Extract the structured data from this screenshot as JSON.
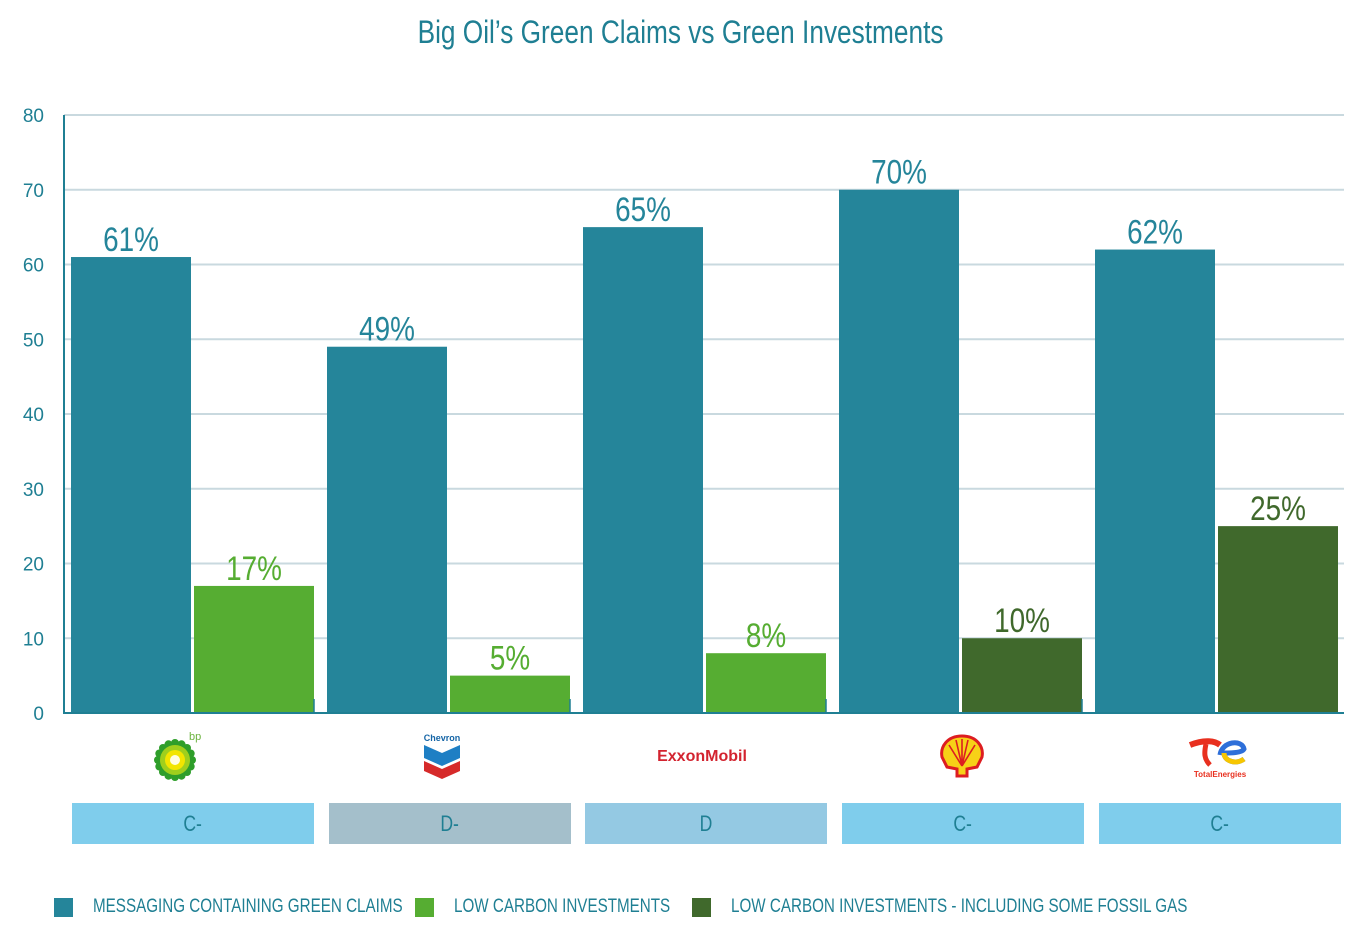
{
  "colors": {
    "claims": "#25859a",
    "low_carbon": "#56ad32",
    "low_carbon_gas": "#40692c",
    "text": "#1f7f93",
    "grid": "#c9d9df",
    "axis": "#1f7f93"
  },
  "chart_data": {
    "type": "bar",
    "title": "Big Oil’s Green Claims vs Green Investments",
    "xlabel": "",
    "ylabel": "",
    "ylim": [
      0,
      80
    ],
    "yticks": [
      0,
      10,
      20,
      30,
      40,
      50,
      60,
      70,
      80
    ],
    "grid": true,
    "legend_position": "bottom",
    "categories": [
      "bp",
      "Chevron",
      "ExxonMobil",
      "Shell",
      "TotalEnergies"
    ],
    "series": [
      {
        "name": "MESSAGING CONTAINING GREEN CLAIMS",
        "values": [
          61,
          49,
          65,
          70,
          62
        ],
        "labels": [
          "61%",
          "49%",
          "65%",
          "70%",
          "62%"
        ]
      },
      {
        "name": "LOW CARBON INVESTMENTS",
        "values": [
          17,
          5,
          8,
          null,
          null
        ],
        "labels": [
          "17%",
          "5%",
          "8%",
          null,
          null
        ]
      },
      {
        "name": "LOW CARBON INVESTMENTS - INCLUDING SOME FOSSIL GAS",
        "values": [
          null,
          null,
          null,
          10,
          25
        ],
        "labels": [
          null,
          null,
          null,
          "10%",
          "25%"
        ]
      }
    ],
    "grades": [
      "C-",
      "D-",
      "D",
      "C-",
      "C-"
    ]
  },
  "logos": [
    {
      "name": "bp-logo",
      "text": "bp"
    },
    {
      "name": "chevron-logo",
      "text": "Chevron"
    },
    {
      "name": "exxonmobil-logo",
      "text": "ExxonMobil"
    },
    {
      "name": "shell-logo",
      "text": ""
    },
    {
      "name": "totalenergies-logo",
      "text": "TotalEnergies"
    }
  ],
  "grade_colors": [
    "#7fcdec",
    "#a4bfcb",
    "#94c9e3",
    "#7fcdec",
    "#7fcdec"
  ]
}
